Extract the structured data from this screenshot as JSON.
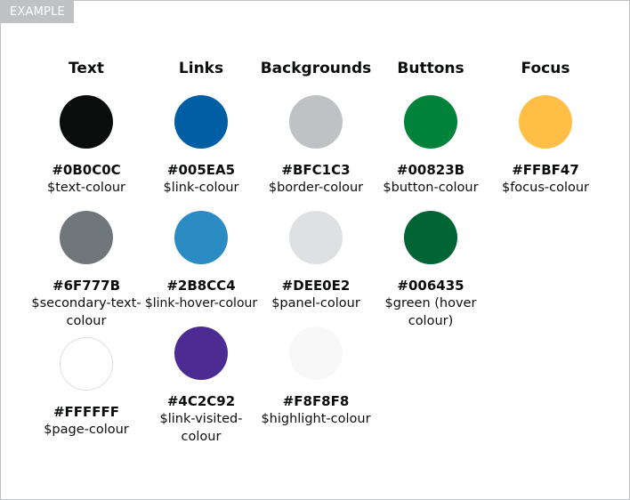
{
  "tag": "EXAMPLE",
  "columns": [
    {
      "heading": "Text",
      "swatches": [
        {
          "hex": "#0B0C0C",
          "var": "$text-colour",
          "color": "#0B0C0C",
          "outlined": false
        },
        {
          "hex": "#6F777B",
          "var": "$secondary-text-colour",
          "color": "#6F777B",
          "outlined": false
        },
        {
          "hex": "#FFFFFF",
          "var": "$page-colour",
          "color": "#FFFFFF",
          "outlined": true
        }
      ]
    },
    {
      "heading": "Links",
      "swatches": [
        {
          "hex": "#005EA5",
          "var": "$link-colour",
          "color": "#005EA5",
          "outlined": false
        },
        {
          "hex": "#2B8CC4",
          "var": "$link-hover-colour",
          "color": "#2B8CC4",
          "outlined": false
        },
        {
          "hex": "#4C2C92",
          "var": "$link-visited-colour",
          "color": "#4C2C92",
          "outlined": false
        }
      ]
    },
    {
      "heading": "Backgrounds",
      "swatches": [
        {
          "hex": "#BFC1C3",
          "var": "$border-colour",
          "color": "#BFC1C3",
          "outlined": false
        },
        {
          "hex": "#DEE0E2",
          "var": "$panel-colour",
          "color": "#DEE0E2",
          "outlined": false
        },
        {
          "hex": "#F8F8F8",
          "var": "$highlight-colour",
          "color": "#F8F8F8",
          "outlined": false
        }
      ]
    },
    {
      "heading": "Buttons",
      "swatches": [
        {
          "hex": "#00823B",
          "var": "$button-colour",
          "color": "#00823B",
          "outlined": false
        },
        {
          "hex": "#006435",
          "var": "$green (hover colour)",
          "color": "#006435",
          "outlined": false
        }
      ]
    },
    {
      "heading": "Focus",
      "swatches": [
        {
          "hex": "#FFBF47",
          "var": "$focus-colour",
          "color": "#FFBF47",
          "outlined": false
        }
      ]
    }
  ]
}
